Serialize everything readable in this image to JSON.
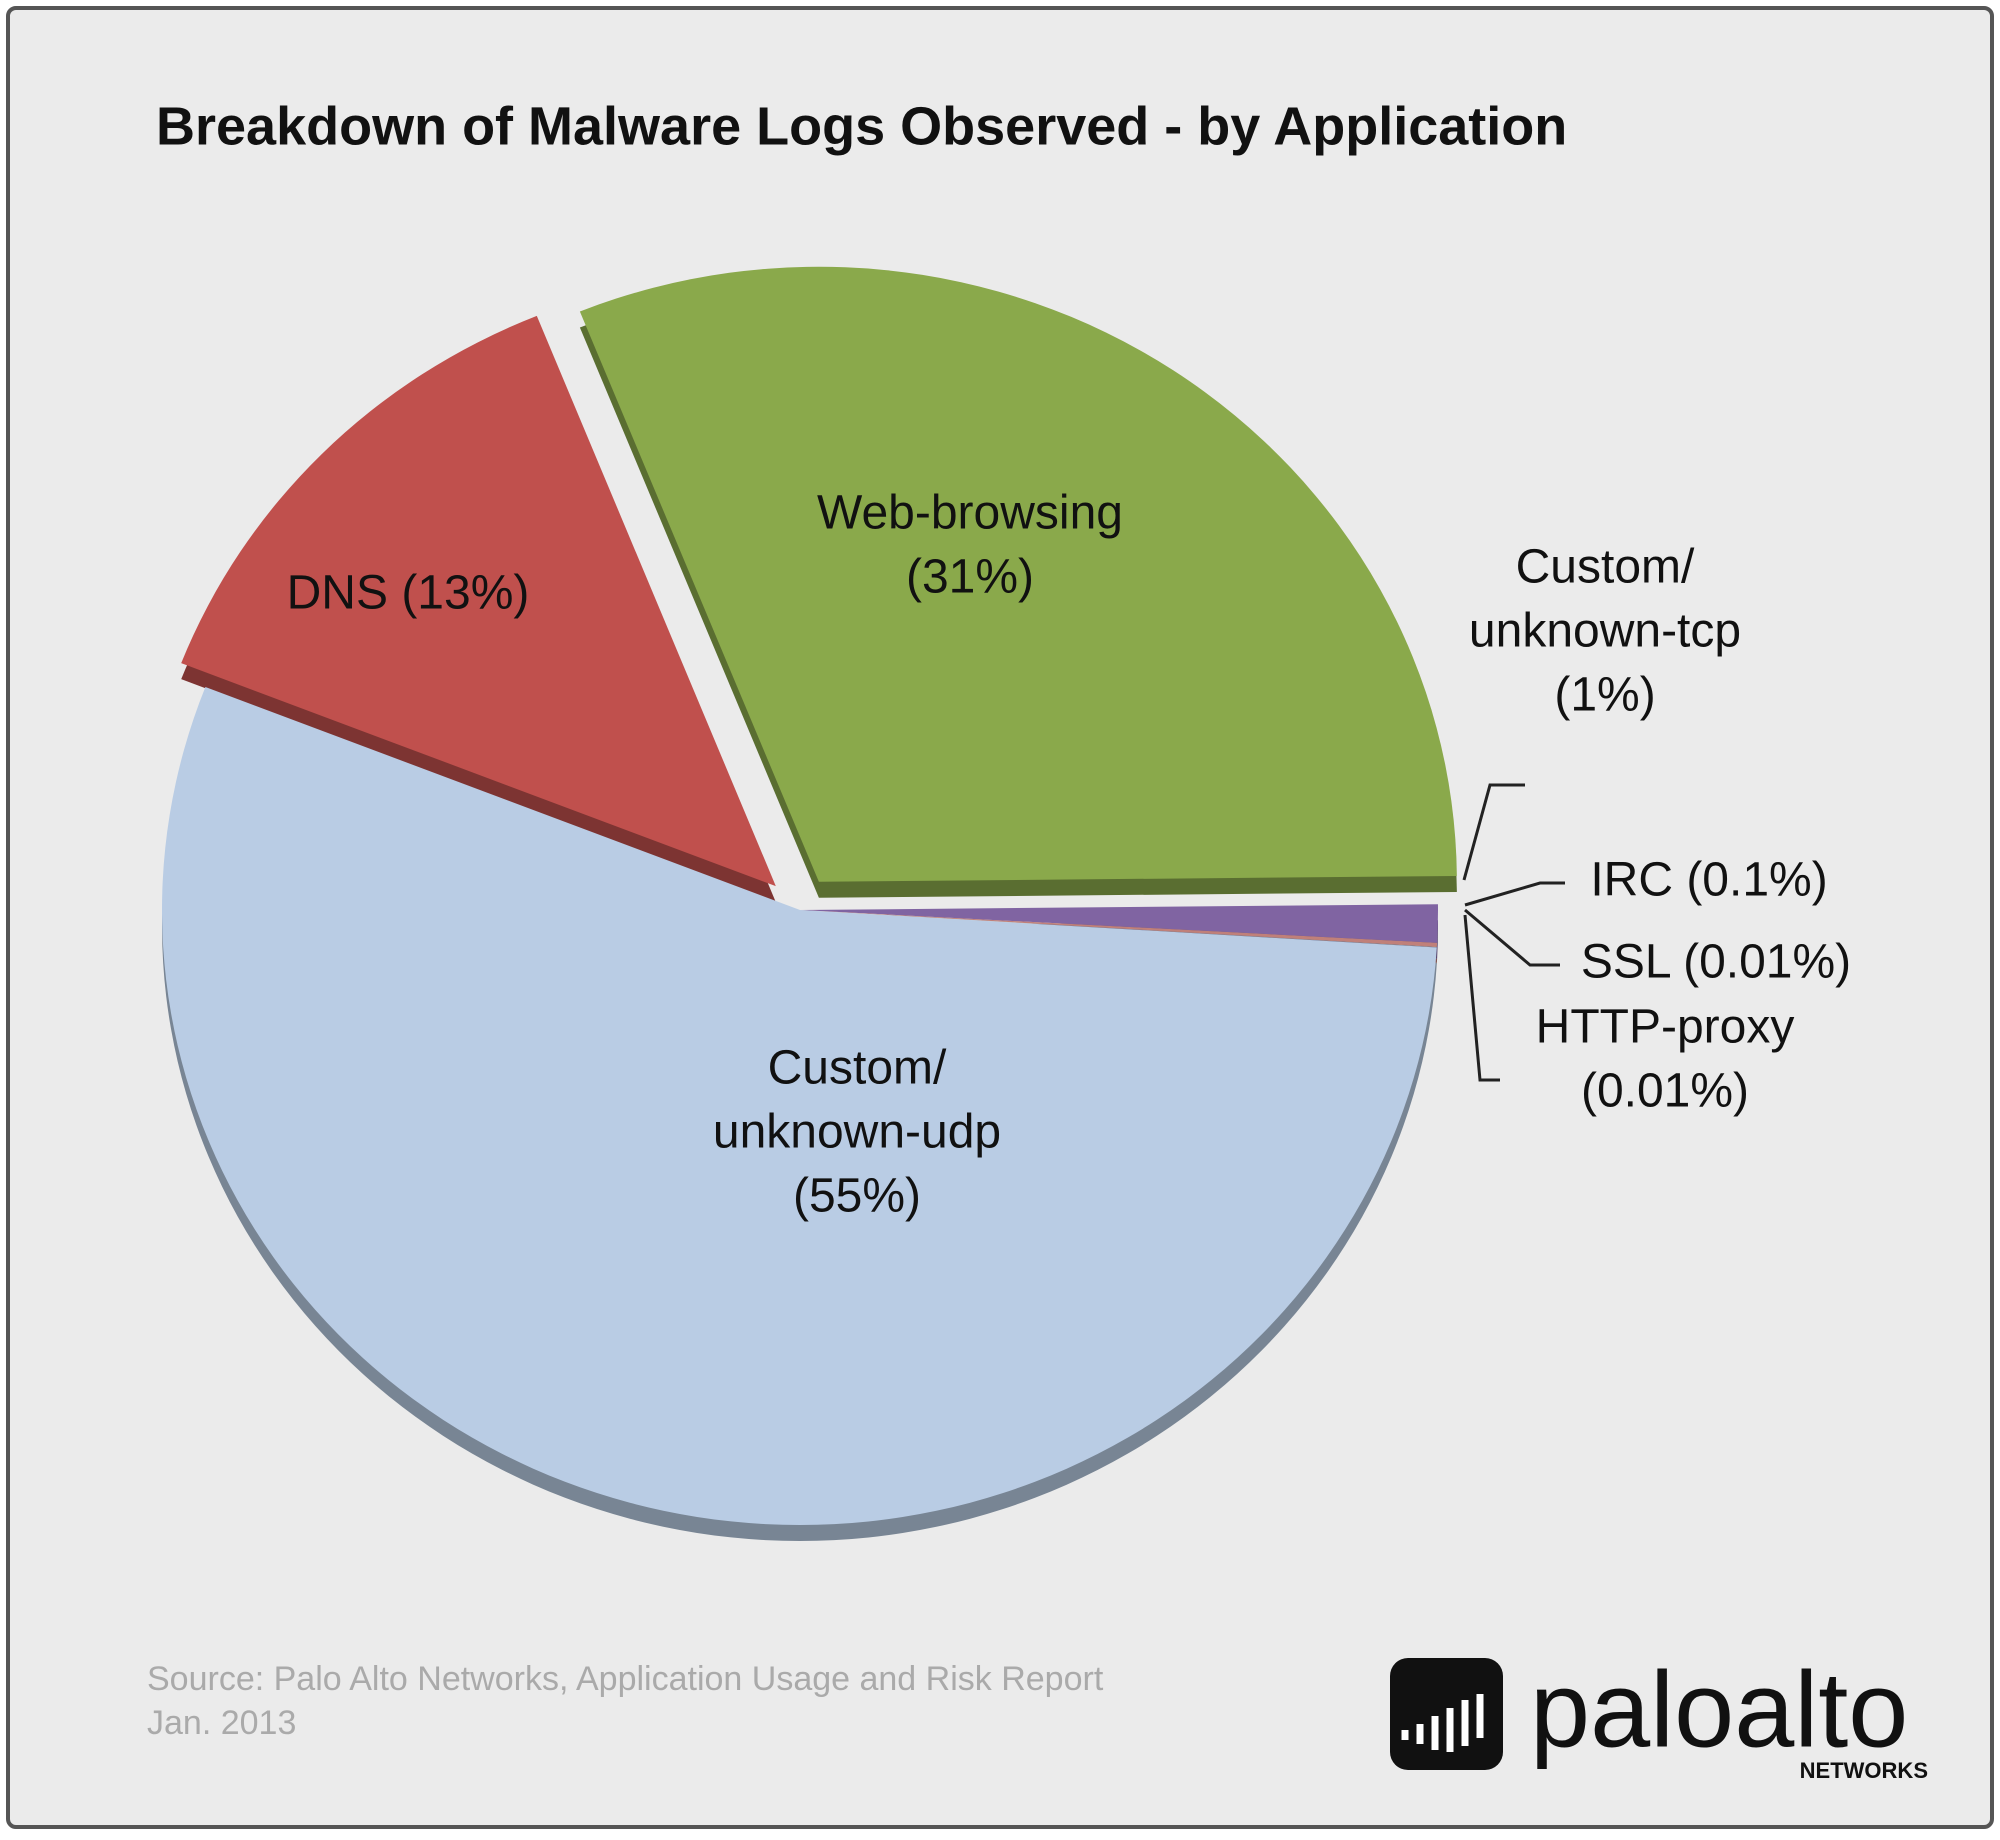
{
  "chart_data": {
    "type": "pie",
    "title": "Breakdown of Malware Logs Observed - by Application",
    "values": [
      31,
      1,
      0.1,
      0.01,
      0.01,
      55,
      13
    ],
    "value_labels": [
      [
        "Web-browsing",
        "(31%)"
      ],
      [
        "Custom/",
        "unknown-tcp",
        "(1%)"
      ],
      [
        "IRC (0.1%)"
      ],
      [
        "SSL (0.01%)"
      ],
      [
        "HTTP-proxy",
        "(0.01%)"
      ],
      [
        "Custom/",
        "unknown-udp",
        "(55%)"
      ],
      [
        "DNS (13%)"
      ]
    ],
    "colors": [
      "#8aa94b",
      "#8064a2",
      "#c0807a",
      "#d9a27e",
      "#7b8fab",
      "#b9cce4",
      "#c0504d"
    ],
    "exploded": [
      true,
      false,
      false,
      false,
      false,
      false,
      true
    ]
  },
  "footer": {
    "source": [
      "Source: Palo Alto Networks, Application Usage and Risk Report",
      "Jan. 2013"
    ],
    "logo": "paloalto",
    "logo_sub": "NETWORKS"
  }
}
